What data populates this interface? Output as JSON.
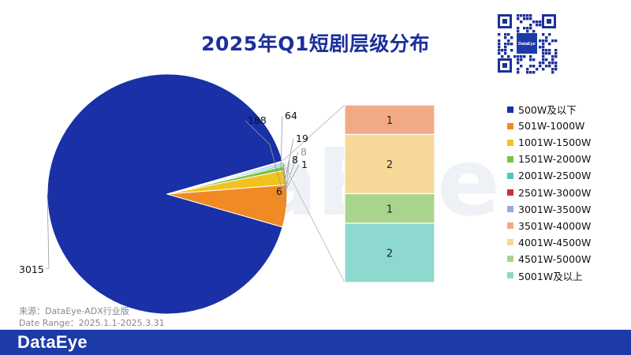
{
  "brand": {
    "watermark": "DataEye",
    "footer_logo": "DataEye",
    "qr_badge": "DataEye"
  },
  "source": {
    "line1": "来源：DataEye-ADX行业版",
    "line2": "Date Range：2025.1.1-2025.3.31"
  },
  "chart_data": {
    "type": "bar-of-pie",
    "title": "2025年Q1短剧层级分布",
    "categories": [
      "500W及以下",
      "501W-1000W",
      "1001W-1500W",
      "1501W-2000W",
      "2001W-2500W",
      "2501W-3000W",
      "3001W-3500W",
      "3501W-4000W",
      "4001W-4500W",
      "4501W-5000W",
      "5001W及以上"
    ],
    "values": [
      3015,
      188,
      64,
      19,
      8,
      1,
      8,
      1,
      2,
      1,
      2
    ],
    "colors": [
      "#1a30a6",
      "#f08a24",
      "#f2c21e",
      "#7cc242",
      "#4fc5c0",
      "#cc3040",
      "#9aa8e0",
      "#f2aa86",
      "#f7d898",
      "#a9d48e",
      "#8ed9cf"
    ],
    "pie": {
      "slices": [
        {
          "label": "3015",
          "value": 3015,
          "color": "#1a30a6"
        },
        {
          "label": "188",
          "value": 188,
          "color": "#f08a24"
        },
        {
          "label": "64",
          "value": 64,
          "color": "#f2c21e"
        },
        {
          "label": "19",
          "value": 19,
          "color": "#7cc242"
        },
        {
          "label": "8",
          "value": 8,
          "color": "#4fc5c0"
        },
        {
          "label": "1",
          "value": 1,
          "color": "#cc3040"
        },
        {
          "label": "8",
          "value": 8,
          "color": "#9aa8e0"
        },
        {
          "label": "6",
          "value": 6,
          "color": "#e4e6ea"
        }
      ]
    },
    "bar": {
      "segments": [
        {
          "label": "1",
          "value": 1,
          "color": "#f2aa86"
        },
        {
          "label": "2",
          "value": 2,
          "color": "#f7d898"
        },
        {
          "label": "1",
          "value": 1,
          "color": "#a9d48e"
        },
        {
          "label": "2",
          "value": 2,
          "color": "#8ed9cf"
        }
      ]
    },
    "legend_placement": "right"
  }
}
